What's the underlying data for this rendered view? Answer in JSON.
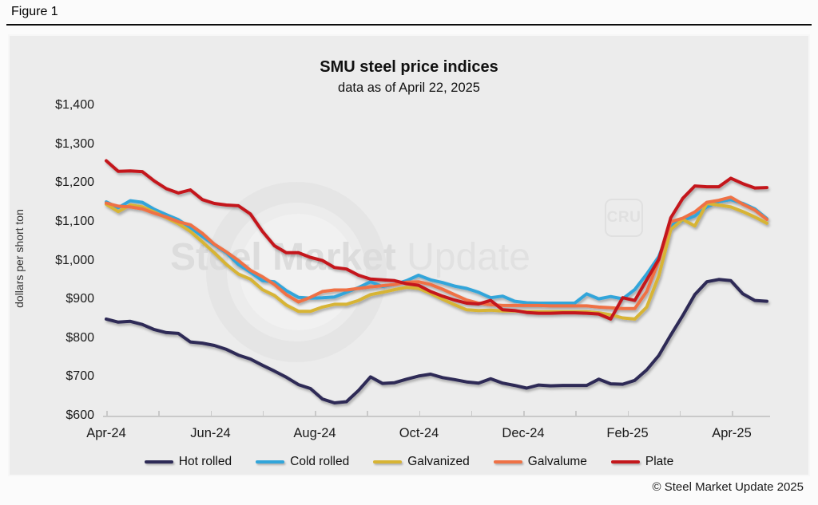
{
  "figure": {
    "label": "Figure 1"
  },
  "chart": {
    "title": "SMU steel price indices",
    "subtitle": "data as of April 22, 2025",
    "y_axis": {
      "title": "dollars per short ton",
      "tick_labels": [
        "$1,400",
        "$1,300",
        "$1,200",
        "$1,100",
        "$1,000",
        "$900",
        "$800",
        "$700",
        "$600"
      ]
    },
    "x_axis": {
      "tick_labels": [
        "Apr-24",
        "Jun-24",
        "Aug-24",
        "Oct-24",
        "Dec-24",
        "Feb-25",
        "Apr-25"
      ]
    },
    "watermark": {
      "bold_part": "Steel Market",
      "light_part": "Update",
      "cru_logo": "CRU"
    },
    "footer": "© Steel Market Update 2025"
  },
  "chart_data": {
    "type": "line",
    "title": "SMU steel price indices",
    "subtitle": "data as of April 22, 2025",
    "xlabel": "",
    "ylabel": "dollars per short ton",
    "ylim": [
      600,
      1400
    ],
    "x_range": "weekly data, Apr 2024 through Apr 22, 2025",
    "x_tick_labels": [
      "Apr-24",
      "Jun-24",
      "Aug-24",
      "Oct-24",
      "Dec-24",
      "Feb-25",
      "Apr-25"
    ],
    "grid": false,
    "legend_position": "bottom",
    "series": [
      {
        "name": "Hot rolled",
        "color": "#2d2a56",
        "values": [
          849,
          841,
          843,
          835,
          822,
          814,
          812,
          790,
          787,
          781,
          771,
          756,
          746,
          730,
          715,
          699,
          680,
          670,
          643,
          633,
          636,
          665,
          700,
          683,
          685,
          694,
          702,
          707,
          698,
          693,
          687,
          684,
          695,
          684,
          678,
          671,
          679,
          677,
          678,
          678,
          678,
          694,
          682,
          681,
          691,
          718,
          755,
          808,
          858,
          912,
          945,
          951,
          948,
          914,
          897,
          895
        ]
      },
      {
        "name": "Cold rolled",
        "color": "#31a5da",
        "values": [
          1151,
          1136,
          1154,
          1150,
          1132,
          1118,
          1105,
          1085,
          1062,
          1040,
          1020,
          990,
          970,
          948,
          945,
          922,
          905,
          903,
          904,
          906,
          918,
          930,
          945,
          933,
          938,
          948,
          962,
          950,
          943,
          934,
          928,
          918,
          904,
          908,
          895,
          891,
          890,
          890,
          890,
          890,
          914,
          901,
          907,
          901,
          925,
          965,
          1010,
          1090,
          1103,
          1115,
          1138,
          1152,
          1157,
          1147,
          1133,
          1108
        ]
      },
      {
        "name": "Galvanized",
        "color": "#d7b434",
        "values": [
          1145,
          1126,
          1143,
          1138,
          1125,
          1110,
          1095,
          1075,
          1048,
          1020,
          990,
          965,
          952,
          925,
          910,
          885,
          869,
          869,
          880,
          887,
          887,
          897,
          912,
          918,
          925,
          931,
          928,
          915,
          900,
          886,
          873,
          871,
          872,
          870,
          870,
          868,
          868,
          868,
          868,
          868,
          868,
          865,
          860,
          852,
          849,
          880,
          960,
          1080,
          1106,
          1089,
          1147,
          1143,
          1138,
          1126,
          1112,
          1096
        ]
      },
      {
        "name": "Galvalume",
        "color": "#ef7145",
        "values": [
          1148,
          1140,
          1138,
          1133,
          1122,
          1112,
          1100,
          1092,
          1070,
          1042,
          1022,
          1000,
          975,
          958,
          938,
          912,
          893,
          905,
          920,
          924,
          924,
          928,
          932,
          935,
          938,
          944,
          945,
          938,
          926,
          912,
          898,
          890,
          886,
          884,
          884,
          884,
          884,
          883,
          883,
          883,
          883,
          880,
          878,
          876,
          876,
          920,
          1000,
          1100,
          1109,
          1125,
          1150,
          1155,
          1163,
          1145,
          1130,
          1106
        ]
      },
      {
        "name": "Plate",
        "color": "#c4171b",
        "values": [
          1257,
          1230,
          1231,
          1229,
          1205,
          1185,
          1174,
          1182,
          1157,
          1147,
          1143,
          1141,
          1120,
          1075,
          1038,
          1020,
          1020,
          1008,
          1000,
          982,
          978,
          962,
          952,
          950,
          948,
          940,
          936,
          920,
          908,
          898,
          890,
          888,
          897,
          873,
          871,
          866,
          864,
          864,
          865,
          865,
          864,
          862,
          849,
          904,
          897,
          950,
          1003,
          1110,
          1160,
          1192,
          1190,
          1190,
          1212,
          1198,
          1187,
          1188
        ]
      }
    ]
  }
}
